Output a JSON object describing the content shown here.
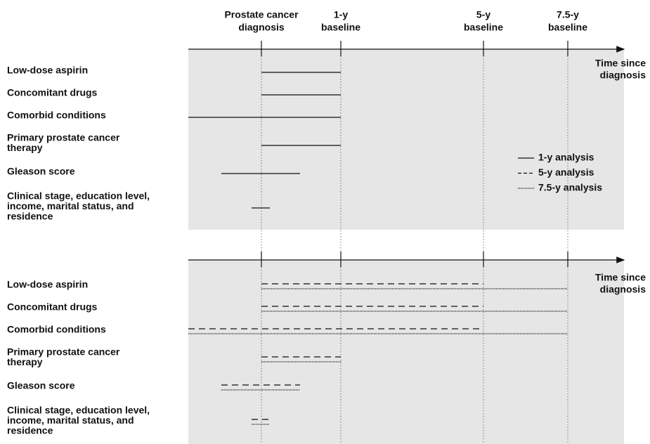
{
  "header": {
    "milestones": [
      {
        "lines": [
          "Prostate cancer",
          "diagnosis"
        ]
      },
      {
        "lines": [
          "1-y",
          "baseline"
        ]
      },
      {
        "lines": [
          "5-y",
          "baseline"
        ]
      },
      {
        "lines": [
          "7.5-y",
          "baseline"
        ]
      }
    ]
  },
  "panels": [
    {
      "axis_label": [
        "Time since",
        "diagnosis"
      ],
      "rows": [
        {
          "lines": [
            "Low-dose aspirin"
          ]
        },
        {
          "lines": [
            "Concomitant drugs"
          ]
        },
        {
          "lines": [
            "Comorbid conditions"
          ]
        },
        {
          "lines": [
            "Primary prostate cancer",
            "therapy"
          ]
        },
        {
          "lines": [
            "Gleason score"
          ]
        },
        {
          "lines": [
            "Clinical stage, education level,",
            "income, marital status, and",
            "residence"
          ]
        }
      ]
    },
    {
      "axis_label": [
        "Time since",
        "diagnosis"
      ],
      "rows": [
        {
          "lines": [
            "Low-dose aspirin"
          ]
        },
        {
          "lines": [
            "Concomitant drugs"
          ]
        },
        {
          "lines": [
            "Comorbid conditions"
          ]
        },
        {
          "lines": [
            "Primary prostate cancer",
            "therapy"
          ]
        },
        {
          "lines": [
            "Gleason score"
          ]
        },
        {
          "lines": [
            "Clinical stage, education level,",
            "income, marital status, and",
            "residence"
          ]
        }
      ]
    }
  ],
  "legend": [
    {
      "label": "1-y analysis"
    },
    {
      "label": "5-y analysis"
    },
    {
      "label": "7.5-y analysis"
    }
  ]
}
